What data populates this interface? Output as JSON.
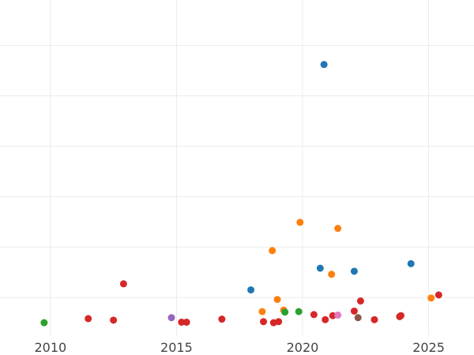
{
  "chart_data": {
    "type": "scatter",
    "title": "",
    "xlabel": "",
    "ylabel": "",
    "xlim": [
      2008.0,
      2026.8
    ],
    "ylim": [
      -0.25,
      6.4
    ],
    "x_ticks": [
      2010,
      2015,
      2020,
      2025
    ],
    "x_tick_labels": [
      "2010",
      "2015",
      "2020",
      "2025"
    ],
    "y_gridlines": [
      0.5,
      1.5,
      2.5,
      3.5,
      4.5,
      5.5,
      6.5
    ],
    "grid": true,
    "legend": "none",
    "series": [
      {
        "color": "#1f77b4",
        "points": [
          {
            "x": 2020.85,
            "y": 5.12
          },
          {
            "x": 2017.95,
            "y": 0.65
          },
          {
            "x": 2020.7,
            "y": 1.08
          },
          {
            "x": 2022.05,
            "y": 1.02
          },
          {
            "x": 2024.3,
            "y": 1.17
          }
        ]
      },
      {
        "color": "#ff7f0e",
        "points": [
          {
            "x": 2019.9,
            "y": 1.99
          },
          {
            "x": 2021.4,
            "y": 1.87
          },
          {
            "x": 2018.8,
            "y": 1.43
          },
          {
            "x": 2021.15,
            "y": 0.96
          },
          {
            "x": 2019.0,
            "y": 0.46
          },
          {
            "x": 2018.4,
            "y": 0.22
          },
          {
            "x": 2019.25,
            "y": 0.25
          },
          {
            "x": 2025.1,
            "y": 0.49
          }
        ]
      },
      {
        "color": "#2ca02c",
        "points": [
          {
            "x": 2009.75,
            "y": 0.0
          },
          {
            "x": 2019.3,
            "y": 0.21
          },
          {
            "x": 2019.85,
            "y": 0.22
          }
        ]
      },
      {
        "color": "#d62728",
        "points": [
          {
            "x": 2012.9,
            "y": 0.77
          },
          {
            "x": 2011.5,
            "y": 0.08
          },
          {
            "x": 2012.5,
            "y": 0.05
          },
          {
            "x": 2015.2,
            "y": 0.01
          },
          {
            "x": 2015.4,
            "y": 0.01
          },
          {
            "x": 2016.8,
            "y": 0.07
          },
          {
            "x": 2018.45,
            "y": 0.02
          },
          {
            "x": 2018.85,
            "y": 0.0
          },
          {
            "x": 2019.05,
            "y": 0.02
          },
          {
            "x": 2020.45,
            "y": 0.16
          },
          {
            "x": 2020.9,
            "y": 0.06
          },
          {
            "x": 2021.2,
            "y": 0.14
          },
          {
            "x": 2022.05,
            "y": 0.23
          },
          {
            "x": 2022.3,
            "y": 0.43
          },
          {
            "x": 2022.85,
            "y": 0.06
          },
          {
            "x": 2023.85,
            "y": 0.12
          },
          {
            "x": 2023.9,
            "y": 0.14
          },
          {
            "x": 2025.4,
            "y": 0.55
          }
        ]
      },
      {
        "color": "#9467bd",
        "points": [
          {
            "x": 2014.8,
            "y": 0.1
          }
        ]
      },
      {
        "color": "#8c564b",
        "points": [
          {
            "x": 2022.2,
            "y": 0.1
          }
        ]
      },
      {
        "color": "#e377c2",
        "points": [
          {
            "x": 2021.4,
            "y": 0.15
          }
        ]
      }
    ]
  }
}
